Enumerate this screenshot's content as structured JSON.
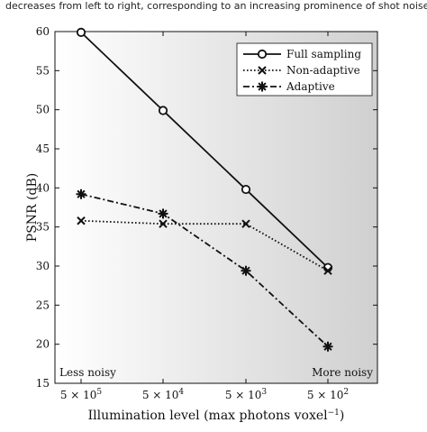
{
  "caption": "decreases from left to right, corresponding to an increasing prominence of shot noise.",
  "chart_data": {
    "type": "line",
    "title": "",
    "xlabel": "Illumination level (max photons voxel",
    "xlabel_sup": "−1",
    "xlabel_close": ")",
    "ylabel": "PSNR (dB)",
    "categories": [
      "5 × 10^5",
      "5 × 10^4",
      "5 × 10^3",
      "5 × 10^2"
    ],
    "x_ticks": [
      {
        "base": "5 × 10",
        "exp": "5"
      },
      {
        "base": "5 × 10",
        "exp": "4"
      },
      {
        "base": "5 × 10",
        "exp": "3"
      },
      {
        "base": "5 × 10",
        "exp": "2"
      }
    ],
    "ylim": [
      15,
      60
    ],
    "yticks": [
      15,
      20,
      25,
      30,
      35,
      40,
      45,
      50,
      55,
      60
    ],
    "grid": false,
    "legend_position": "top-right",
    "annotations": {
      "left": "Less noisy",
      "right": "More noisy"
    },
    "series": [
      {
        "name": "Full sampling",
        "values": [
          59.9,
          49.9,
          39.8,
          29.8
        ],
        "marker": "circle",
        "dash": "solid"
      },
      {
        "name": "Non-adaptive",
        "values": [
          35.8,
          35.4,
          35.4,
          29.4
        ],
        "marker": "x",
        "dash": "dotted"
      },
      {
        "name": "Adaptive",
        "values": [
          39.2,
          36.7,
          29.4,
          19.7
        ],
        "marker": "asterisk",
        "dash": "dashdot"
      }
    ],
    "colors": {
      "line": "#111111",
      "background_left": "#ffffff",
      "background_right": "#d0d0d0"
    }
  }
}
